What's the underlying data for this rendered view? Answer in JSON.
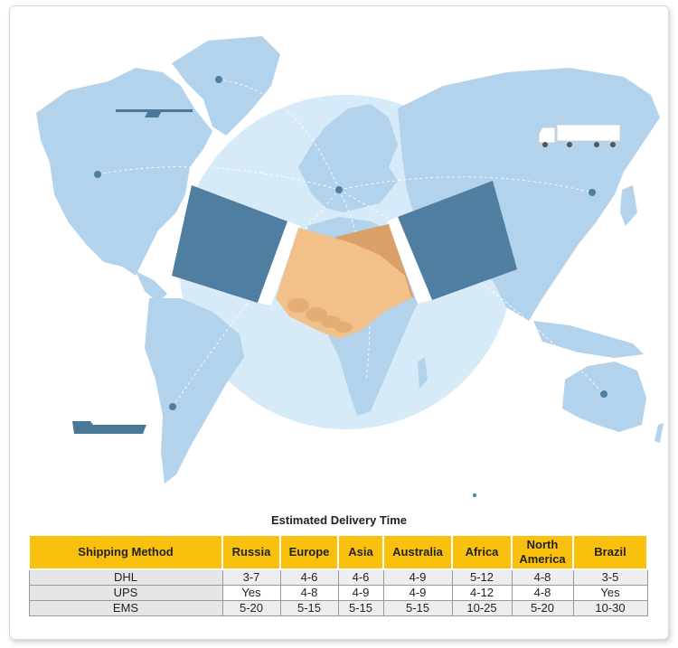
{
  "table": {
    "title": "Estimated Delivery Time",
    "headers": [
      "Shipping Method",
      "Russia",
      "Europe",
      "Asia",
      "Australia",
      "Africa",
      "North America",
      "Brazil"
    ],
    "rows": [
      {
        "method": "DHL",
        "values": [
          "3-7",
          "4-6",
          "4-6",
          "4-9",
          "5-12",
          "4-8",
          "3-5"
        ]
      },
      {
        "method": "UPS",
        "values": [
          "Yes",
          "4-8",
          "4-9",
          "4-9",
          "4-12",
          "4-8",
          "Yes"
        ]
      },
      {
        "method": "EMS",
        "values": [
          "5-20",
          "5-15",
          "5-15",
          "5-15",
          "10-25",
          "5-20",
          "10-30"
        ]
      }
    ]
  },
  "colors": {
    "continent": "#b3d2ec",
    "globe": "#d6eaf8",
    "sleeve": "#4f7ea1",
    "hand": "#f2c089",
    "hand_dark": "#d9a06a",
    "header": "#f9c10e",
    "ship": "#4a7898"
  },
  "icons": [
    "world-map-illustration",
    "handshake-icon",
    "truck-icon",
    "airplane-icon",
    "ship-icon"
  ]
}
